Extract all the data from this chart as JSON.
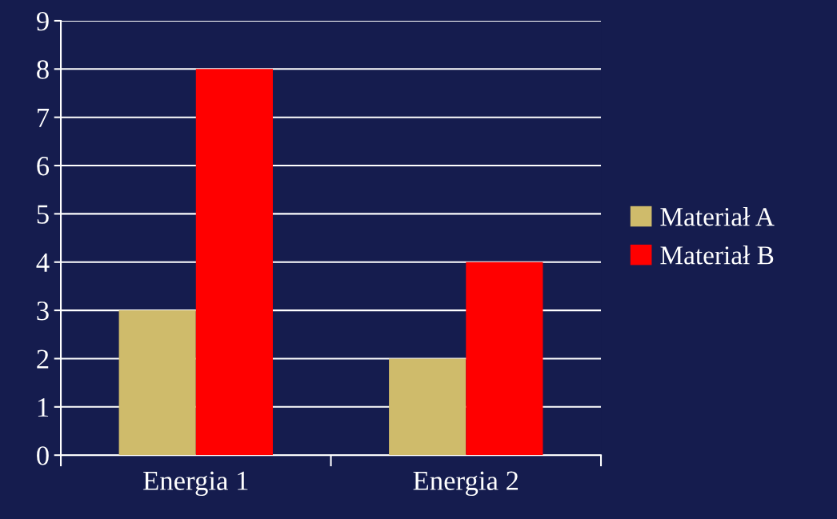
{
  "chart_data": {
    "type": "bar",
    "categories": [
      "Energia 1",
      "Energia 2"
    ],
    "series": [
      {
        "name": "Materiał A",
        "color": "#cfbb6b",
        "values": [
          3,
          2
        ]
      },
      {
        "name": "Materiał B",
        "color": "#ff0000",
        "values": [
          8,
          4
        ]
      }
    ],
    "ylim": [
      0,
      9
    ],
    "yticks": [
      0,
      1,
      2,
      3,
      4,
      5,
      6,
      7,
      8,
      9
    ],
    "grid": "y",
    "legend": "right"
  }
}
